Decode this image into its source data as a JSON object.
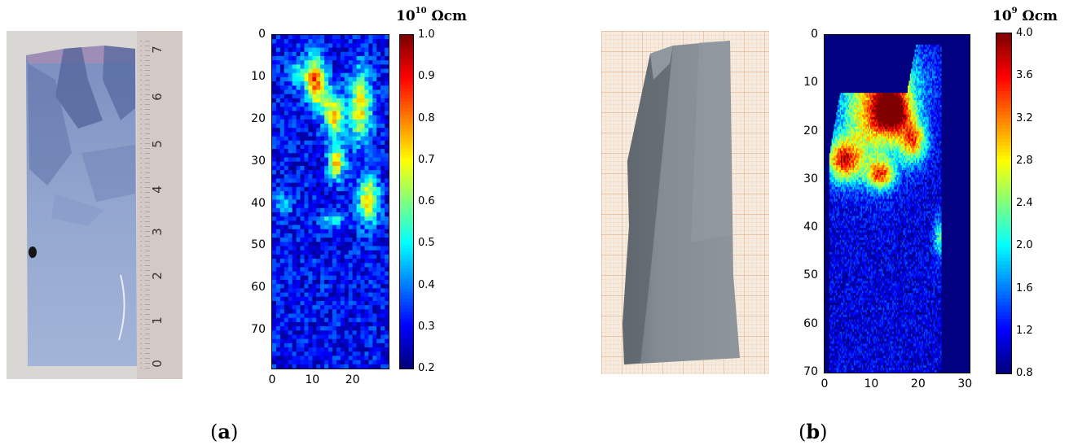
{
  "panels": [
    {
      "id": "a",
      "label_open": "(",
      "label_letter": "a",
      "label_close": ")",
      "photo": {
        "ruler_numbers": [
          "0",
          "1",
          "2",
          "3",
          "4",
          "5",
          "6",
          "7"
        ]
      }
    },
    {
      "id": "b",
      "label_open": "(",
      "label_letter": "b",
      "label_close": ")"
    }
  ],
  "chart_data": [
    {
      "type": "heatmap",
      "colormap": "jet",
      "title": "",
      "colorbar_unit_base": "10",
      "colorbar_unit_exp": "10",
      "colorbar_unit_suffix": " Ωcm",
      "x_ticks": [
        "0",
        "10",
        "20"
      ],
      "y_ticks": [
        "0",
        "10",
        "20",
        "30",
        "40",
        "50",
        "60",
        "70"
      ],
      "xlim": [
        0,
        29
      ],
      "ylim": [
        79,
        0
      ],
      "clim": [
        0.2,
        1.0
      ],
      "colorbar_ticks": [
        "1.0",
        "0.9",
        "0.8",
        "0.7",
        "0.6",
        "0.5",
        "0.4",
        "0.3",
        "0.2"
      ],
      "grid": false,
      "data_description_cells": {
        "nx": 29,
        "ny": 79,
        "background": 0.3,
        "hotspots": [
          {
            "x": 10.5,
            "y": 10,
            "peak": 0.82,
            "sx": 1.8,
            "sy": 3.5
          },
          {
            "x": 13,
            "y": 15,
            "peak": 0.55,
            "sx": 2.5,
            "sy": 2.5
          },
          {
            "x": 15.5,
            "y": 20,
            "peak": 0.7,
            "sx": 1.8,
            "sy": 3
          },
          {
            "x": 16,
            "y": 30,
            "peak": 0.72,
            "sx": 1.5,
            "sy": 3
          },
          {
            "x": 22,
            "y": 17,
            "peak": 0.7,
            "sx": 2,
            "sy": 6
          },
          {
            "x": 24,
            "y": 39,
            "peak": 0.72,
            "sx": 1.8,
            "sy": 4
          },
          {
            "x": 15,
            "y": 44,
            "peak": 0.55,
            "sx": 2,
            "sy": 1.2
          },
          {
            "x": 6,
            "y": 9,
            "peak": 0.5,
            "sx": 1.5,
            "sy": 2
          },
          {
            "x": 3,
            "y": 40,
            "peak": 0.45,
            "sx": 1.5,
            "sy": 2
          }
        ]
      }
    },
    {
      "type": "heatmap",
      "colormap": "jet",
      "title": "",
      "colorbar_unit_base": "10",
      "colorbar_unit_exp": "9",
      "colorbar_unit_suffix": " Ωcm",
      "x_ticks": [
        "0",
        "10",
        "20",
        "30"
      ],
      "y_ticks": [
        "0",
        "10",
        "20",
        "30",
        "40",
        "50",
        "60",
        "70"
      ],
      "xlim": [
        0,
        31
      ],
      "ylim": [
        70,
        0
      ],
      "clim": [
        0.8,
        4.0
      ],
      "colorbar_ticks": [
        "4.0",
        "3.6",
        "3.2",
        "2.8",
        "2.4",
        "2.0",
        "1.6",
        "1.2",
        "0.8"
      ],
      "grid": false,
      "data_description_cells": {
        "nx": 124,
        "ny": 140,
        "background": 1.1,
        "hotspots": [
          {
            "x": 14.5,
            "y": 16,
            "peak": 3.4,
            "sx": 2.5,
            "sy": 3
          },
          {
            "x": 4,
            "y": 26,
            "peak": 3.3,
            "sx": 2.5,
            "sy": 3
          },
          {
            "x": 12,
            "y": 29,
            "peak": 3.0,
            "sx": 2,
            "sy": 2
          },
          {
            "x": 19,
            "y": 22,
            "peak": 3.0,
            "sx": 2,
            "sy": 3
          },
          {
            "x": 10,
            "y": 18,
            "peak": 2.6,
            "sx": 5,
            "sy": 8
          },
          {
            "x": 14,
            "y": 10,
            "peak": 2.4,
            "sx": 5,
            "sy": 6
          },
          {
            "x": 24.5,
            "y": 42,
            "peak": 2.2,
            "sx": 0.8,
            "sy": 3
          }
        ]
      }
    }
  ]
}
